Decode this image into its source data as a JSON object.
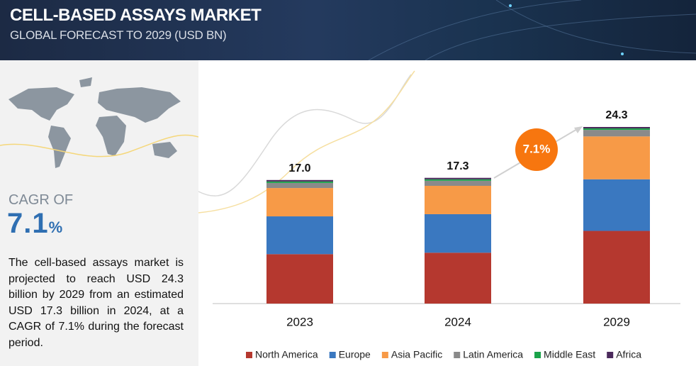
{
  "chart_data": {
    "type": "bar",
    "stacked": true,
    "title": "CELL-BASED ASSAYS MARKET",
    "subtitle": "GLOBAL FORECAST TO 2029 (USD BN)",
    "categories": [
      "2023",
      "2024",
      "2029"
    ],
    "series": [
      {
        "name": "North America",
        "color": "#b5382f",
        "values": [
          6.8,
          7.0,
          10.0
        ]
      },
      {
        "name": "Europe",
        "color": "#3a78c0",
        "values": [
          5.2,
          5.3,
          7.1
        ]
      },
      {
        "name": "Asia Pacific",
        "color": "#f79a47",
        "values": [
          3.9,
          3.9,
          5.9
        ]
      },
      {
        "name": "Latin America",
        "color": "#8a8a8a",
        "values": [
          0.7,
          0.7,
          0.9
        ]
      },
      {
        "name": "Middle East",
        "color": "#1aa34a",
        "values": [
          0.2,
          0.2,
          0.2
        ]
      },
      {
        "name": "Africa",
        "color": "#4b2a5c",
        "values": [
          0.2,
          0.2,
          0.2
        ]
      }
    ],
    "totals": [
      17.0,
      17.3,
      24.3
    ],
    "total_labels": [
      "17.0",
      "17.3",
      "24.3"
    ],
    "annotation": "7.1%",
    "legend": "bottom",
    "side_panel": {
      "cagr_label": "CAGR OF",
      "cagr_value": "7.1",
      "cagr_unit": "%",
      "description": "The cell-based assays market is projected to reach USD 24.3 billion by 2029 from an estimated USD 17.3 billion in 2024, at a CAGR of 7.1% during the forecast period."
    }
  }
}
